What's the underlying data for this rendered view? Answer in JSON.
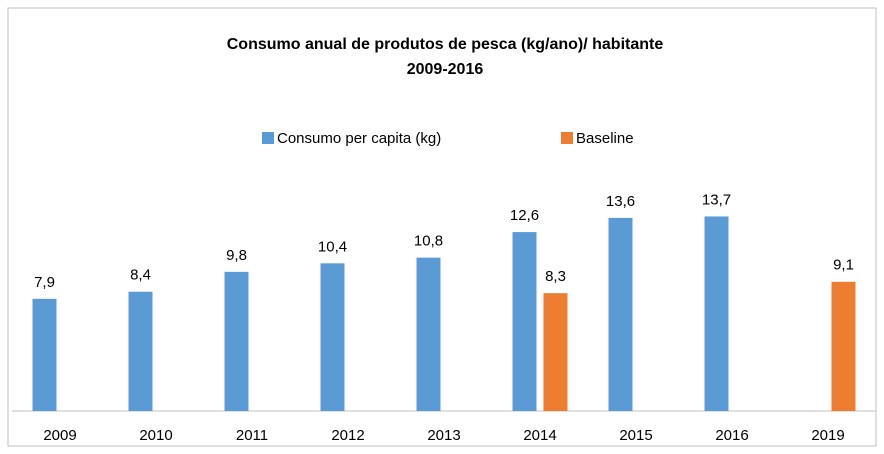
{
  "chart_data": {
    "type": "bar",
    "title": [
      "Consumo anual de produtos de pesca (kg/ano)/  habitante",
      "2009-2016"
    ],
    "categories": [
      "2009",
      "2010",
      "2011",
      "2012",
      "2013",
      "2014",
      "2015",
      "2016",
      "2019"
    ],
    "series": [
      {
        "name": "Consumo per capita (kg)",
        "color": "#5b9bd5",
        "values": [
          7.9,
          8.4,
          9.8,
          10.4,
          10.8,
          12.6,
          13.6,
          13.7,
          null
        ],
        "value_labels": [
          "7,9",
          "8,4",
          "9,8",
          "10,4",
          "10,8",
          "12,6",
          "13,6",
          "13,7",
          null
        ]
      },
      {
        "name": "Baseline",
        "color": "#ed7d31",
        "values": [
          null,
          null,
          null,
          null,
          null,
          8.3,
          null,
          null,
          9.1
        ],
        "value_labels": [
          null,
          null,
          null,
          null,
          null,
          "8,3",
          null,
          null,
          "9,1"
        ]
      }
    ],
    "ylim": [
      0,
      20
    ]
  }
}
